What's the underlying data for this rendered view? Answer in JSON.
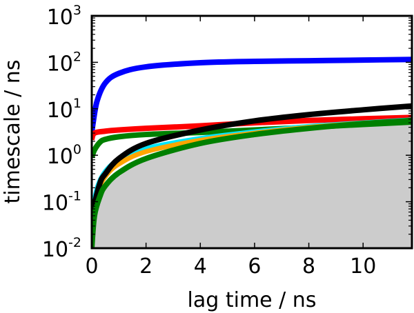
{
  "chart_data": {
    "type": "line",
    "title": "",
    "xlabel": "lag time / ns",
    "ylabel": "timescale / ns",
    "xscale": "linear",
    "yscale": "log",
    "xlim": [
      0,
      11.8
    ],
    "ylim": [
      0.01,
      1000
    ],
    "grid": false,
    "legend": null,
    "x_ticks": [
      0,
      2,
      4,
      6,
      8,
      10
    ],
    "x_tick_labels": [
      "0",
      "2",
      "4",
      "6",
      "8",
      "10"
    ],
    "y_ticks": [
      0.01,
      0.1,
      1,
      10,
      100,
      1000
    ],
    "y_tick_labels": [
      {
        "base": "10",
        "exp": "-2"
      },
      {
        "base": "10",
        "exp": "-1"
      },
      {
        "base": "10",
        "exp": "0"
      },
      {
        "base": "10",
        "exp": "1"
      },
      {
        "base": "10",
        "exp": "2"
      },
      {
        "base": "10",
        "exp": "3"
      }
    ],
    "shaded_region": {
      "name": "gray-fill",
      "color": "#cccccc",
      "x": [
        0,
        0.2,
        0.5,
        1,
        2,
        4,
        6,
        8,
        10,
        11.8
      ],
      "upper": [
        0.01,
        0.08,
        0.2,
        0.35,
        0.8,
        1.7,
        2.7,
        3.7,
        4.5,
        5.2
      ]
    },
    "series": [
      {
        "name": "blue",
        "color": "#0000ff",
        "x": [
          0,
          0.05,
          0.2,
          0.5,
          1,
          2,
          4,
          6,
          8,
          10,
          11.8
        ],
        "values": [
          3,
          5,
          15,
          36,
          58,
          80,
          98,
          105,
          108,
          112,
          115
        ]
      },
      {
        "name": "red",
        "color": "#ff0000",
        "x": [
          0,
          0.1,
          0.5,
          1,
          2,
          4,
          6,
          8,
          10,
          11.8
        ],
        "values": [
          2.2,
          3.0,
          3.3,
          3.5,
          3.8,
          4.3,
          5.0,
          5.6,
          6.1,
          6.5
        ]
      },
      {
        "name": "green-upper",
        "color": "#008000",
        "x": [
          0,
          0.1,
          0.3,
          0.5,
          1,
          2,
          4,
          6,
          8,
          10,
          11.8
        ],
        "values": [
          0.9,
          1.3,
          1.9,
          2.2,
          2.5,
          2.8,
          3.1,
          3.5,
          4.0,
          4.6,
          5.2
        ]
      },
      {
        "name": "cyan",
        "color": "#00e5ff",
        "x": [
          0,
          0.2,
          0.5,
          1,
          2,
          4,
          6,
          8,
          10,
          11.8
        ],
        "values": [
          0.05,
          0.2,
          0.45,
          0.8,
          1.4,
          2.3,
          3.2,
          4.2,
          5.0,
          5.8
        ]
      },
      {
        "name": "orange",
        "color": "#ffa500",
        "x": [
          0,
          0.2,
          0.5,
          1,
          2,
          4,
          6,
          8,
          10,
          11.8
        ],
        "values": [
          0.03,
          0.15,
          0.35,
          0.65,
          1.2,
          2.1,
          3.0,
          4.0,
          4.9,
          5.6
        ]
      },
      {
        "name": "black",
        "color": "#000000",
        "x": [
          0,
          0.1,
          0.3,
          0.5,
          1,
          2,
          4,
          6,
          8,
          10,
          11.8
        ],
        "values": [
          0.015,
          0.08,
          0.25,
          0.4,
          0.85,
          1.8,
          3.5,
          5.5,
          7.5,
          9.5,
          11.5
        ]
      },
      {
        "name": "green-lower",
        "color": "#008000",
        "x": [
          0,
          0.1,
          0.3,
          0.5,
          1,
          2,
          4,
          6,
          8,
          10,
          11.8
        ],
        "values": [
          0.01,
          0.05,
          0.13,
          0.22,
          0.42,
          0.85,
          1.8,
          2.8,
          3.8,
          4.8,
          5.6
        ]
      }
    ]
  }
}
